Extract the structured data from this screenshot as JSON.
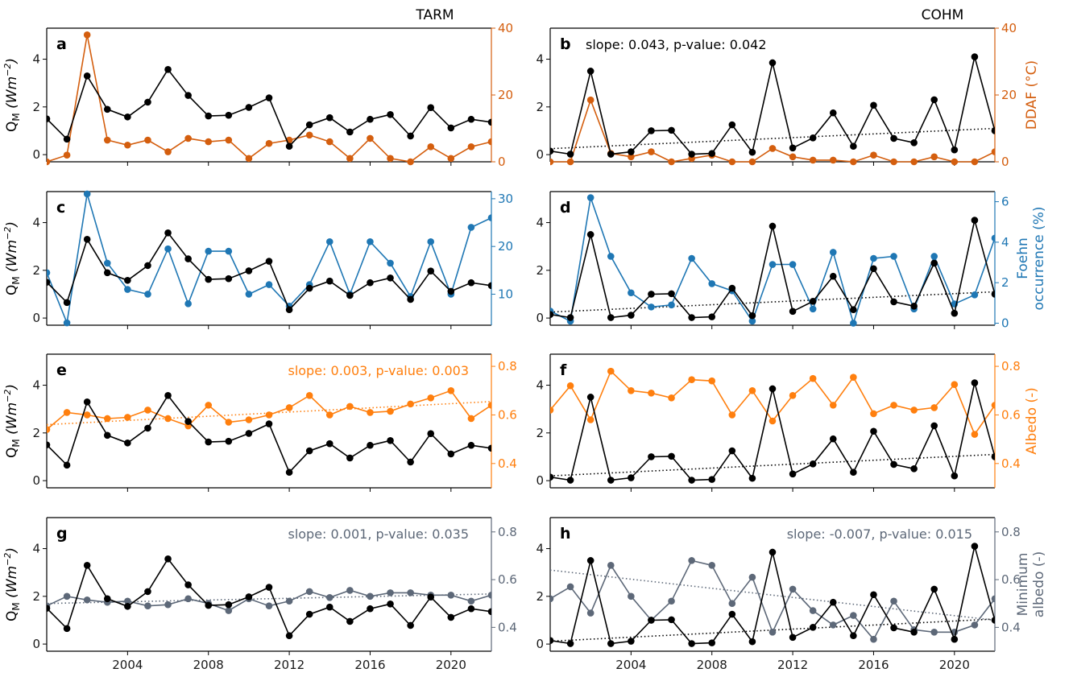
{
  "columns": [
    "TARM",
    "COHM"
  ],
  "colors": {
    "qm": "#000000",
    "ddaf": "#d45e0e",
    "foehn": "#1f77b4",
    "albedo": "#ff7f0e",
    "min_albedo": "#5d6878"
  },
  "chart_data": [
    {
      "panel": "a",
      "type": "line",
      "column": "TARM",
      "x": [
        2000,
        2001,
        2002,
        2003,
        2004,
        2005,
        2006,
        2007,
        2008,
        2009,
        2010,
        2011,
        2012,
        2013,
        2014,
        2015,
        2016,
        2017,
        2018,
        2019,
        2020,
        2021,
        2022
      ],
      "xlim": [
        2000,
        2022
      ],
      "xticks": [
        "2004",
        "2008",
        "2012",
        "2016",
        "2020"
      ],
      "ylabel_left": "QM (Wm−2)",
      "ylim_left": [
        -0.3,
        5.3
      ],
      "yticks_left": [
        "0",
        "2",
        "4"
      ],
      "ylabel_right": "",
      "ylim_right": [
        0,
        40
      ],
      "yticks_right": [
        "0",
        "20",
        "40"
      ],
      "annotation": "",
      "series": [
        {
          "axis": "left",
          "color": "qm",
          "values": [
            1.5,
            0.65,
            3.3,
            1.9,
            1.58,
            2.2,
            3.57,
            2.48,
            1.62,
            1.65,
            1.98,
            2.38,
            0.35,
            1.25,
            1.55,
            0.95,
            1.48,
            1.68,
            0.78,
            1.97,
            1.12,
            1.48,
            1.36
          ]
        },
        {
          "axis": "right",
          "color": "ddaf",
          "values": [
            0,
            2,
            38,
            6.5,
            5,
            6.5,
            3,
            7,
            6,
            6.5,
            1,
            5.5,
            6.5,
            8,
            6,
            1,
            7,
            1,
            0,
            4.5,
            1,
            4.5,
            6
          ]
        }
      ]
    },
    {
      "panel": "b",
      "type": "line",
      "column": "COHM",
      "x": [
        2000,
        2001,
        2002,
        2003,
        2004,
        2005,
        2006,
        2007,
        2008,
        2009,
        2010,
        2011,
        2012,
        2013,
        2014,
        2015,
        2016,
        2017,
        2018,
        2019,
        2020,
        2021,
        2022
      ],
      "xlim": [
        2000,
        2022
      ],
      "xticks": [
        "2004",
        "2008",
        "2012",
        "2016",
        "2020"
      ],
      "ylabel_left": "",
      "ylim_left": [
        -0.3,
        5.3
      ],
      "yticks_left": [
        "0",
        "2",
        "4"
      ],
      "ylabel_right": "DDAF (°C)",
      "ylim_right": [
        0,
        40
      ],
      "yticks_right": [
        "0",
        "20",
        "40"
      ],
      "annotation": "slope: 0.043, p-value: 0.042",
      "trend": {
        "axis": "left",
        "color": "qm",
        "from": 0.25,
        "to": 1.1
      },
      "series": [
        {
          "axis": "left",
          "color": "qm",
          "values": [
            0.15,
            0.02,
            3.5,
            0.02,
            0.12,
            1.0,
            1.02,
            0.02,
            0.05,
            1.25,
            0.1,
            3.85,
            0.28,
            0.7,
            1.75,
            0.35,
            2.07,
            0.68,
            0.5,
            2.3,
            0.2,
            4.1,
            1.0
          ]
        },
        {
          "axis": "right",
          "color": "ddaf",
          "values": [
            0,
            0,
            18.5,
            2.5,
            1.5,
            3,
            0,
            1,
            2,
            0,
            0,
            4,
            1.5,
            0.5,
            0.5,
            0,
            2,
            0,
            0,
            1.5,
            0,
            0,
            3
          ]
        }
      ]
    },
    {
      "panel": "c",
      "type": "line",
      "column": "TARM",
      "x": [
        2000,
        2001,
        2002,
        2003,
        2004,
        2005,
        2006,
        2007,
        2008,
        2009,
        2010,
        2011,
        2012,
        2013,
        2014,
        2015,
        2016,
        2017,
        2018,
        2019,
        2020,
        2021,
        2022
      ],
      "xlim": [
        2000,
        2022
      ],
      "xticks": [
        "2004",
        "2008",
        "2012",
        "2016",
        "2020"
      ],
      "ylabel_left": "QM (Wm−2)",
      "ylim_left": [
        -0.3,
        5.3
      ],
      "yticks_left": [
        "0",
        "2",
        "4"
      ],
      "ylabel_right": "",
      "ylim_right": [
        3.5,
        31.5
      ],
      "yticks_right": [
        "10",
        "20",
        "30"
      ],
      "annotation": "",
      "series": [
        {
          "axis": "left",
          "color": "qm",
          "values": [
            1.5,
            0.65,
            3.3,
            1.9,
            1.58,
            2.2,
            3.57,
            2.48,
            1.62,
            1.65,
            1.98,
            2.38,
            0.35,
            1.25,
            1.55,
            0.95,
            1.48,
            1.68,
            0.78,
            1.97,
            1.12,
            1.48,
            1.36
          ]
        },
        {
          "axis": "right",
          "color": "foehn",
          "values": [
            14.5,
            4,
            31,
            16.5,
            11,
            10,
            19.5,
            8,
            19,
            19,
            10,
            12,
            7.5,
            12,
            21,
            10,
            21,
            16.5,
            9.5,
            21,
            10,
            24,
            26
          ]
        }
      ]
    },
    {
      "panel": "d",
      "type": "line",
      "column": "COHM",
      "x": [
        2000,
        2001,
        2002,
        2003,
        2004,
        2005,
        2006,
        2007,
        2008,
        2009,
        2010,
        2011,
        2012,
        2013,
        2014,
        2015,
        2016,
        2017,
        2018,
        2019,
        2020,
        2021,
        2022
      ],
      "xlim": [
        2000,
        2022
      ],
      "xticks": [
        "2004",
        "2008",
        "2012",
        "2016",
        "2020"
      ],
      "ylabel_left": "",
      "ylim_left": [
        -0.3,
        5.3
      ],
      "yticks_left": [
        "0",
        "2",
        "4"
      ],
      "ylabel_right": "Foehn occurrence (%)",
      "ylim_right": [
        -0.1,
        6.5
      ],
      "yticks_right": [
        "0",
        "2",
        "4",
        "6"
      ],
      "annotation": "",
      "trend": {
        "axis": "left",
        "color": "qm",
        "from": 0.25,
        "to": 1.1
      },
      "series": [
        {
          "axis": "left",
          "color": "qm",
          "values": [
            0.15,
            0.02,
            3.5,
            0.02,
            0.12,
            1.0,
            1.02,
            0.02,
            0.05,
            1.25,
            0.1,
            3.85,
            0.28,
            0.7,
            1.75,
            0.35,
            2.07,
            0.68,
            0.5,
            2.3,
            0.2,
            4.1,
            1.0
          ]
        },
        {
          "axis": "right",
          "color": "foehn",
          "values": [
            0.6,
            0.1,
            6.2,
            3.3,
            1.5,
            0.8,
            0.9,
            3.2,
            1.95,
            1.6,
            0.1,
            2.9,
            2.9,
            0.7,
            3.5,
            0,
            3.2,
            3.3,
            0.7,
            3.3,
            0.95,
            1.4,
            4.2
          ]
        }
      ]
    },
    {
      "panel": "e",
      "type": "line",
      "column": "TARM",
      "x": [
        2000,
        2001,
        2002,
        2003,
        2004,
        2005,
        2006,
        2007,
        2008,
        2009,
        2010,
        2011,
        2012,
        2013,
        2014,
        2015,
        2016,
        2017,
        2018,
        2019,
        2020,
        2021,
        2022
      ],
      "xlim": [
        2000,
        2022
      ],
      "xticks": [
        "2004",
        "2008",
        "2012",
        "2016",
        "2020"
      ],
      "ylabel_left": "QM (Wm−2)",
      "ylim_left": [
        -0.3,
        5.3
      ],
      "yticks_left": [
        "0",
        "2",
        "4"
      ],
      "ylabel_right": "",
      "ylim_right": [
        0.3,
        0.85
      ],
      "yticks_right": [
        "0.4",
        "0.6",
        "0.8"
      ],
      "annotation": "slope: 0.003, p-value: 0.003",
      "annotation_color": "albedo",
      "trend": {
        "axis": "right",
        "color": "albedo",
        "from": 0.56,
        "to": 0.655
      },
      "series": [
        {
          "axis": "left",
          "color": "qm",
          "values": [
            1.5,
            0.65,
            3.3,
            1.9,
            1.58,
            2.2,
            3.57,
            2.48,
            1.62,
            1.65,
            1.98,
            2.38,
            0.35,
            1.25,
            1.55,
            0.95,
            1.48,
            1.68,
            0.78,
            1.97,
            1.12,
            1.48,
            1.36
          ]
        },
        {
          "axis": "right",
          "color": "albedo",
          "values": [
            0.54,
            0.61,
            0.6,
            0.585,
            0.59,
            0.62,
            0.585,
            0.555,
            0.64,
            0.57,
            0.58,
            0.6,
            0.63,
            0.68,
            0.6,
            0.635,
            0.61,
            0.615,
            0.645,
            0.67,
            0.7,
            0.585,
            0.64
          ]
        }
      ]
    },
    {
      "panel": "f",
      "type": "line",
      "column": "COHM",
      "x": [
        2000,
        2001,
        2002,
        2003,
        2004,
        2005,
        2006,
        2007,
        2008,
        2009,
        2010,
        2011,
        2012,
        2013,
        2014,
        2015,
        2016,
        2017,
        2018,
        2019,
        2020,
        2021,
        2022
      ],
      "xlim": [
        2000,
        2022
      ],
      "xticks": [
        "2004",
        "2008",
        "2012",
        "2016",
        "2020"
      ],
      "ylabel_left": "",
      "ylim_left": [
        -0.3,
        5.3
      ],
      "yticks_left": [
        "0",
        "2",
        "4"
      ],
      "ylabel_right": "Albedo (-)",
      "ylim_right": [
        0.3,
        0.85
      ],
      "yticks_right": [
        "0.4",
        "0.6",
        "0.8"
      ],
      "annotation": "",
      "trend": {
        "axis": "left",
        "color": "qm",
        "from": 0.2,
        "to": 1.1
      },
      "series": [
        {
          "axis": "left",
          "color": "qm",
          "values": [
            0.15,
            0.02,
            3.5,
            0.02,
            0.12,
            1.0,
            1.02,
            0.02,
            0.05,
            1.25,
            0.1,
            3.85,
            0.28,
            0.7,
            1.75,
            0.35,
            2.07,
            0.68,
            0.5,
            2.3,
            0.2,
            4.1,
            1.0
          ]
        },
        {
          "axis": "right",
          "color": "albedo",
          "values": [
            0.62,
            0.72,
            0.58,
            0.78,
            0.7,
            0.69,
            0.67,
            0.745,
            0.74,
            0.6,
            0.7,
            0.575,
            0.68,
            0.75,
            0.64,
            0.755,
            0.605,
            0.64,
            0.62,
            0.63,
            0.725,
            0.52,
            0.64
          ]
        }
      ]
    },
    {
      "panel": "g",
      "type": "line",
      "column": "TARM",
      "x": [
        2000,
        2001,
        2002,
        2003,
        2004,
        2005,
        2006,
        2007,
        2008,
        2009,
        2010,
        2011,
        2012,
        2013,
        2014,
        2015,
        2016,
        2017,
        2018,
        2019,
        2020,
        2021,
        2022
      ],
      "xlim": [
        2000,
        2022
      ],
      "xticks": [
        "2004",
        "2008",
        "2012",
        "2016",
        "2020"
      ],
      "ylabel_left": "QM (Wm−2)",
      "ylim_left": [
        -0.3,
        5.3
      ],
      "yticks_left": [
        "0",
        "2",
        "4"
      ],
      "ylabel_right": "",
      "ylim_right": [
        0.3,
        0.86
      ],
      "yticks_right": [
        "0.4",
        "0.6",
        "0.8"
      ],
      "annotation": "slope: 0.001, p-value: 0.035",
      "annotation_color": "min_albedo",
      "trend": {
        "axis": "right",
        "color": "min_albedo",
        "from": 0.5,
        "to": 0.54
      },
      "series": [
        {
          "axis": "left",
          "color": "qm",
          "values": [
            1.5,
            0.65,
            3.3,
            1.9,
            1.58,
            2.2,
            3.57,
            2.48,
            1.62,
            1.65,
            1.98,
            2.38,
            0.35,
            1.25,
            1.55,
            0.95,
            1.48,
            1.68,
            0.78,
            1.97,
            1.12,
            1.48,
            1.36
          ]
        },
        {
          "axis": "right",
          "color": "min_albedo",
          "values": [
            0.49,
            0.53,
            0.515,
            0.505,
            0.51,
            0.49,
            0.495,
            0.52,
            0.5,
            0.47,
            0.52,
            0.49,
            0.51,
            0.55,
            0.525,
            0.555,
            0.53,
            0.545,
            0.545,
            0.535,
            0.535,
            0.51,
            0.535
          ]
        }
      ]
    },
    {
      "panel": "h",
      "type": "line",
      "column": "COHM",
      "x": [
        2000,
        2001,
        2002,
        2003,
        2004,
        2005,
        2006,
        2007,
        2008,
        2009,
        2010,
        2011,
        2012,
        2013,
        2014,
        2015,
        2016,
        2017,
        2018,
        2019,
        2020,
        2021,
        2022
      ],
      "xlim": [
        2000,
        2022
      ],
      "xticks": [
        "2004",
        "2008",
        "2012",
        "2016",
        "2020"
      ],
      "ylabel_left": "",
      "ylim_left": [
        -0.3,
        5.3
      ],
      "yticks_left": [
        "0",
        "2",
        "4"
      ],
      "ylabel_right": "Minimum albedo (-)",
      "ylim_right": [
        0.3,
        0.86
      ],
      "yticks_right": [
        "0.4",
        "0.6",
        "0.8"
      ],
      "annotation": "slope: -0.007, p-value: 0.015",
      "annotation_color": "min_albedo",
      "trend_list": [
        {
          "axis": "left",
          "color": "qm",
          "from": 0.12,
          "to": 1.05
        },
        {
          "axis": "right",
          "color": "min_albedo",
          "from": 0.64,
          "to": 0.43
        }
      ],
      "series": [
        {
          "axis": "left",
          "color": "qm",
          "values": [
            0.15,
            0.02,
            3.5,
            0.02,
            0.12,
            1.0,
            1.02,
            0.02,
            0.05,
            1.25,
            0.1,
            3.85,
            0.28,
            0.7,
            1.75,
            0.35,
            2.07,
            0.68,
            0.5,
            2.3,
            0.2,
            4.1,
            1.0
          ]
        },
        {
          "axis": "right",
          "color": "min_albedo",
          "values": [
            0.52,
            0.57,
            0.46,
            0.66,
            0.53,
            0.43,
            0.51,
            0.68,
            0.66,
            0.5,
            0.61,
            0.38,
            0.56,
            0.47,
            0.41,
            0.45,
            0.35,
            0.51,
            0.39,
            0.38,
            0.38,
            0.41,
            0.52
          ]
        }
      ]
    }
  ]
}
